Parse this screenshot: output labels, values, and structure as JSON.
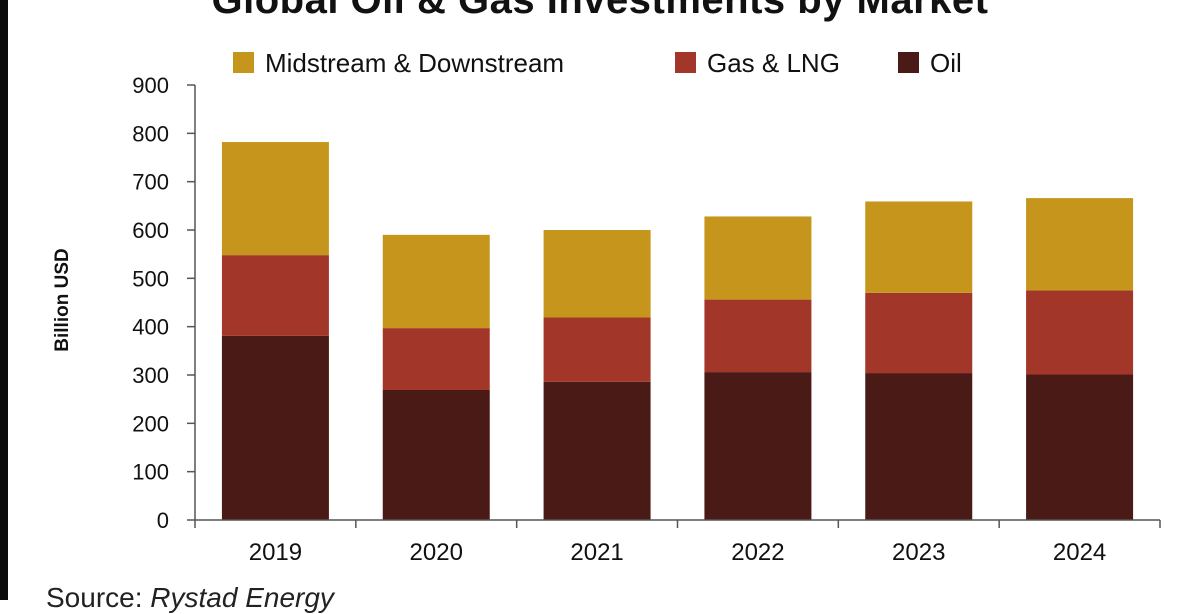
{
  "chart_data": {
    "type": "bar",
    "stacked": true,
    "title": "Global Oil & Gas Investments by Market",
    "xlabel": "",
    "ylabel": "Billion USD",
    "ylim": [
      0,
      900
    ],
    "yticks": [
      "0",
      "100",
      "200",
      "300",
      "400",
      "500",
      "600",
      "700",
      "800",
      "900"
    ],
    "categories": [
      "2019",
      "2020",
      "2021",
      "2022",
      "2023",
      "2024"
    ],
    "series": [
      {
        "name": "Oil",
        "color": "#4a1a16",
        "values": [
          381,
          269,
          286,
          306,
          304,
          301
        ]
      },
      {
        "name": "Gas & LNG",
        "color": "#a23629",
        "values": [
          167,
          128,
          133,
          150,
          166,
          174
        ]
      },
      {
        "name": "Midstream & Downstream",
        "color": "#c6951c",
        "values": [
          234,
          193,
          181,
          172,
          189,
          191
        ]
      }
    ],
    "legend": {
      "position": "top",
      "order": [
        "Midstream & Downstream",
        "Gas & LNG",
        "Oil"
      ]
    },
    "grid": false
  },
  "source": {
    "prefix": "Source: ",
    "name": "Rystad Energy"
  }
}
